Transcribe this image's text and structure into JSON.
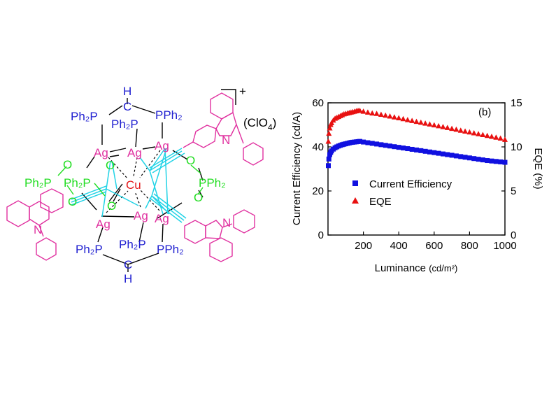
{
  "molecule": {
    "charge": "+",
    "counterion": {
      "open": "(ClO",
      "sub": "4",
      "close": ")"
    },
    "atoms": {
      "H_top": "H",
      "C_top": "C",
      "P_top_left": "Ph₂P",
      "P_top_mid": "Ph₂P",
      "P_top_right": "PPh₂",
      "Ag1": "Ag",
      "Ag2": "Ag",
      "Ag3": "Ag",
      "Ag4": "Ag",
      "Ag5": "Ag",
      "Ag6": "Ag",
      "Cu": "Cu",
      "N_right": "N",
      "N_left": "N",
      "N_bottom": "N",
      "O1": "O",
      "O2": "O",
      "O3": "O",
      "O4": "O",
      "O5": "O",
      "O6": "O",
      "P_green_left1": "Ph₂P",
      "P_green_left2": "Ph₂P",
      "P_green_right": "PPh₂",
      "P_bot_left": "Ph₂P",
      "P_bot_mid": "Ph₂P",
      "P_bot_right": "PPh₂",
      "C_bot": "C",
      "H_bot": "H"
    },
    "colors": {
      "ag": "#e0309f",
      "cu": "#e31a1c",
      "phosphine": "#1f1fd0",
      "phosphinite": "#22dd22",
      "alkyne": "#22d3e6",
      "carbazole": "#e0309f",
      "bond": "#000000"
    }
  },
  "chart_data": {
    "type": "scatter",
    "panel_label": "(b)",
    "xlabel": "Luminance",
    "xunit": "(cd/m²)",
    "ylabel": "Current Efficiency (cd/A)",
    "y2label": "EQE (%)",
    "xlim": [
      0,
      1000
    ],
    "ylim": [
      0,
      60
    ],
    "y2lim": [
      0,
      15
    ],
    "xticks": [
      "200",
      "400",
      "600",
      "800",
      "1000"
    ],
    "yticks": [
      "0",
      "20",
      "40",
      "60"
    ],
    "y2ticks": [
      "0",
      "5",
      "10",
      "15"
    ],
    "legend_position": "center",
    "series": [
      {
        "name": "Current Efficiency",
        "axis": "left",
        "marker": "square",
        "color": "#1010e0",
        "x": [
          2,
          5,
          10,
          15,
          20,
          30,
          40,
          50,
          60,
          70,
          80,
          90,
          100,
          110,
          120,
          130,
          140,
          150,
          160,
          170,
          180,
          200,
          225,
          250,
          275,
          300,
          325,
          350,
          375,
          400,
          425,
          450,
          475,
          500,
          525,
          550,
          575,
          600,
          625,
          650,
          675,
          700,
          725,
          750,
          775,
          800,
          825,
          850,
          875,
          900,
          925,
          950,
          975,
          1000
        ],
        "y": [
          31.5,
          34.5,
          36.5,
          37.5,
          38.2,
          39.0,
          39.6,
          40.0,
          40.4,
          40.7,
          41.0,
          41.2,
          41.4,
          41.6,
          41.8,
          42.0,
          42.1,
          42.2,
          42.3,
          42.4,
          42.5,
          42.2,
          41.9,
          41.6,
          41.3,
          41.0,
          40.7,
          40.4,
          40.1,
          39.8,
          39.5,
          39.2,
          38.9,
          38.6,
          38.3,
          38.0,
          37.7,
          37.4,
          37.1,
          36.8,
          36.5,
          36.2,
          35.9,
          35.6,
          35.3,
          35.0,
          34.7,
          34.4,
          34.1,
          33.8,
          33.6,
          33.4,
          33.2,
          33.0
        ]
      },
      {
        "name": "EQE",
        "axis": "right",
        "marker": "triangle",
        "color": "#e81010",
        "x": [
          2,
          5,
          10,
          15,
          20,
          30,
          40,
          50,
          60,
          70,
          80,
          90,
          100,
          110,
          120,
          130,
          140,
          150,
          160,
          170,
          180,
          200,
          225,
          250,
          275,
          300,
          325,
          350,
          375,
          400,
          425,
          450,
          475,
          500,
          525,
          550,
          575,
          600,
          625,
          650,
          675,
          700,
          725,
          750,
          775,
          800,
          825,
          850,
          875,
          900,
          925,
          950,
          975,
          1000
        ],
        "y": [
          10.6,
          11.5,
          12.1,
          12.5,
          12.7,
          13.0,
          13.2,
          13.3,
          13.4,
          13.5,
          13.6,
          13.7,
          13.75,
          13.8,
          13.85,
          13.9,
          13.95,
          14.0,
          14.05,
          14.1,
          14.1,
          14.0,
          13.9,
          13.8,
          13.75,
          13.65,
          13.55,
          13.45,
          13.35,
          13.25,
          13.15,
          13.05,
          12.95,
          12.85,
          12.75,
          12.65,
          12.55,
          12.45,
          12.35,
          12.25,
          12.15,
          12.05,
          11.95,
          11.85,
          11.75,
          11.65,
          11.55,
          11.45,
          11.35,
          11.25,
          11.15,
          11.05,
          10.95,
          10.8
        ]
      }
    ]
  }
}
